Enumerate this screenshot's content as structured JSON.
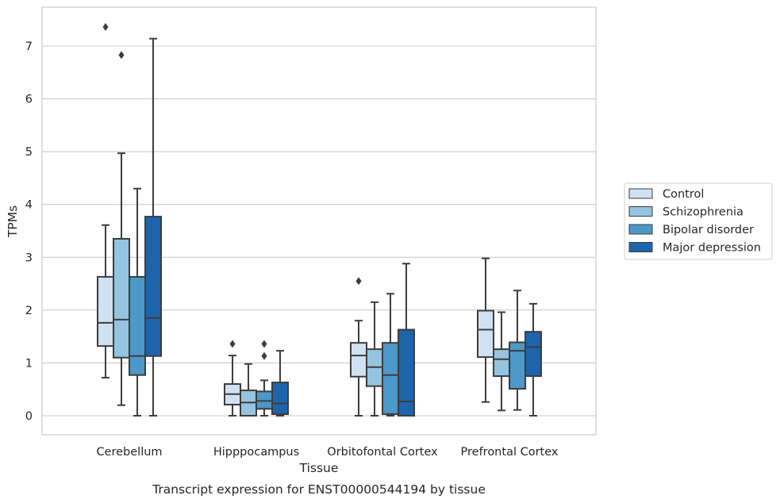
{
  "caption": "Transcript expression for ENST00000544194 by tissue",
  "chart_data": {
    "type": "box",
    "xlabel": "Tissue",
    "ylabel": "TPMs",
    "ylim": [
      -0.35,
      7.75
    ],
    "yticks": [
      0,
      1,
      2,
      3,
      4,
      5,
      6,
      7
    ],
    "grid": "horizontal",
    "legend_placement": "right-center",
    "categories": [
      "Cerebellum",
      "Hipppocampus",
      "Orbitofontal Cortex",
      "Prefrontal Cortex"
    ],
    "series": [
      {
        "name": "Control",
        "color": "#d0e1f2",
        "boxes": [
          {
            "whislo": 0.72,
            "q1": 1.32,
            "med": 1.76,
            "q3": 2.63,
            "whishi": 3.61,
            "fliers": [
              7.36
            ]
          },
          {
            "whislo": 0.0,
            "q1": 0.21,
            "med": 0.41,
            "q3": 0.6,
            "whishi": 1.14,
            "fliers": [
              1.36
            ]
          },
          {
            "whislo": 0.0,
            "q1": 0.74,
            "med": 1.14,
            "q3": 1.38,
            "whishi": 1.8,
            "fliers": [
              2.55
            ]
          },
          {
            "whislo": 0.26,
            "q1": 1.11,
            "med": 1.63,
            "q3": 1.99,
            "whishi": 2.98,
            "fliers": []
          }
        ]
      },
      {
        "name": "Schizophrenia",
        "color": "#94c4df",
        "boxes": [
          {
            "whislo": 0.2,
            "q1": 1.1,
            "med": 1.82,
            "q3": 3.35,
            "whishi": 4.97,
            "fliers": [
              6.83
            ]
          },
          {
            "whislo": 0.0,
            "q1": 0.0,
            "med": 0.25,
            "q3": 0.48,
            "whishi": 0.98,
            "fliers": []
          },
          {
            "whislo": 0.0,
            "q1": 0.56,
            "med": 0.92,
            "q3": 1.26,
            "whishi": 2.15,
            "fliers": []
          },
          {
            "whislo": 0.1,
            "q1": 0.75,
            "med": 1.07,
            "q3": 1.26,
            "whishi": 1.96,
            "fliers": []
          }
        ]
      },
      {
        "name": "Bipolar disorder",
        "color": "#4b98c9",
        "boxes": [
          {
            "whislo": 0.0,
            "q1": 0.77,
            "med": 1.13,
            "q3": 2.63,
            "whishi": 4.3,
            "fliers": []
          },
          {
            "whislo": 0.0,
            "q1": 0.13,
            "med": 0.28,
            "q3": 0.46,
            "whishi": 0.67,
            "fliers": [
              1.13,
              1.36
            ]
          },
          {
            "whislo": 0.0,
            "q1": 0.03,
            "med": 0.77,
            "q3": 1.38,
            "whishi": 2.31,
            "fliers": []
          },
          {
            "whislo": 0.11,
            "q1": 0.51,
            "med": 1.23,
            "q3": 1.39,
            "whishi": 2.37,
            "fliers": []
          }
        ]
      },
      {
        "name": "Major depression",
        "color": "#1d64ad",
        "boxes": [
          {
            "whislo": 0.0,
            "q1": 1.13,
            "med": 1.85,
            "q3": 3.77,
            "whishi": 7.14,
            "fliers": []
          },
          {
            "whislo": 0.0,
            "q1": 0.03,
            "med": 0.23,
            "q3": 0.63,
            "whishi": 1.23,
            "fliers": []
          },
          {
            "whislo": 0.0,
            "q1": 0.0,
            "med": 0.27,
            "q3": 1.63,
            "whishi": 2.88,
            "fliers": []
          },
          {
            "whislo": 0.0,
            "q1": 0.75,
            "med": 1.3,
            "q3": 1.59,
            "whishi": 2.12,
            "fliers": []
          }
        ]
      }
    ]
  }
}
